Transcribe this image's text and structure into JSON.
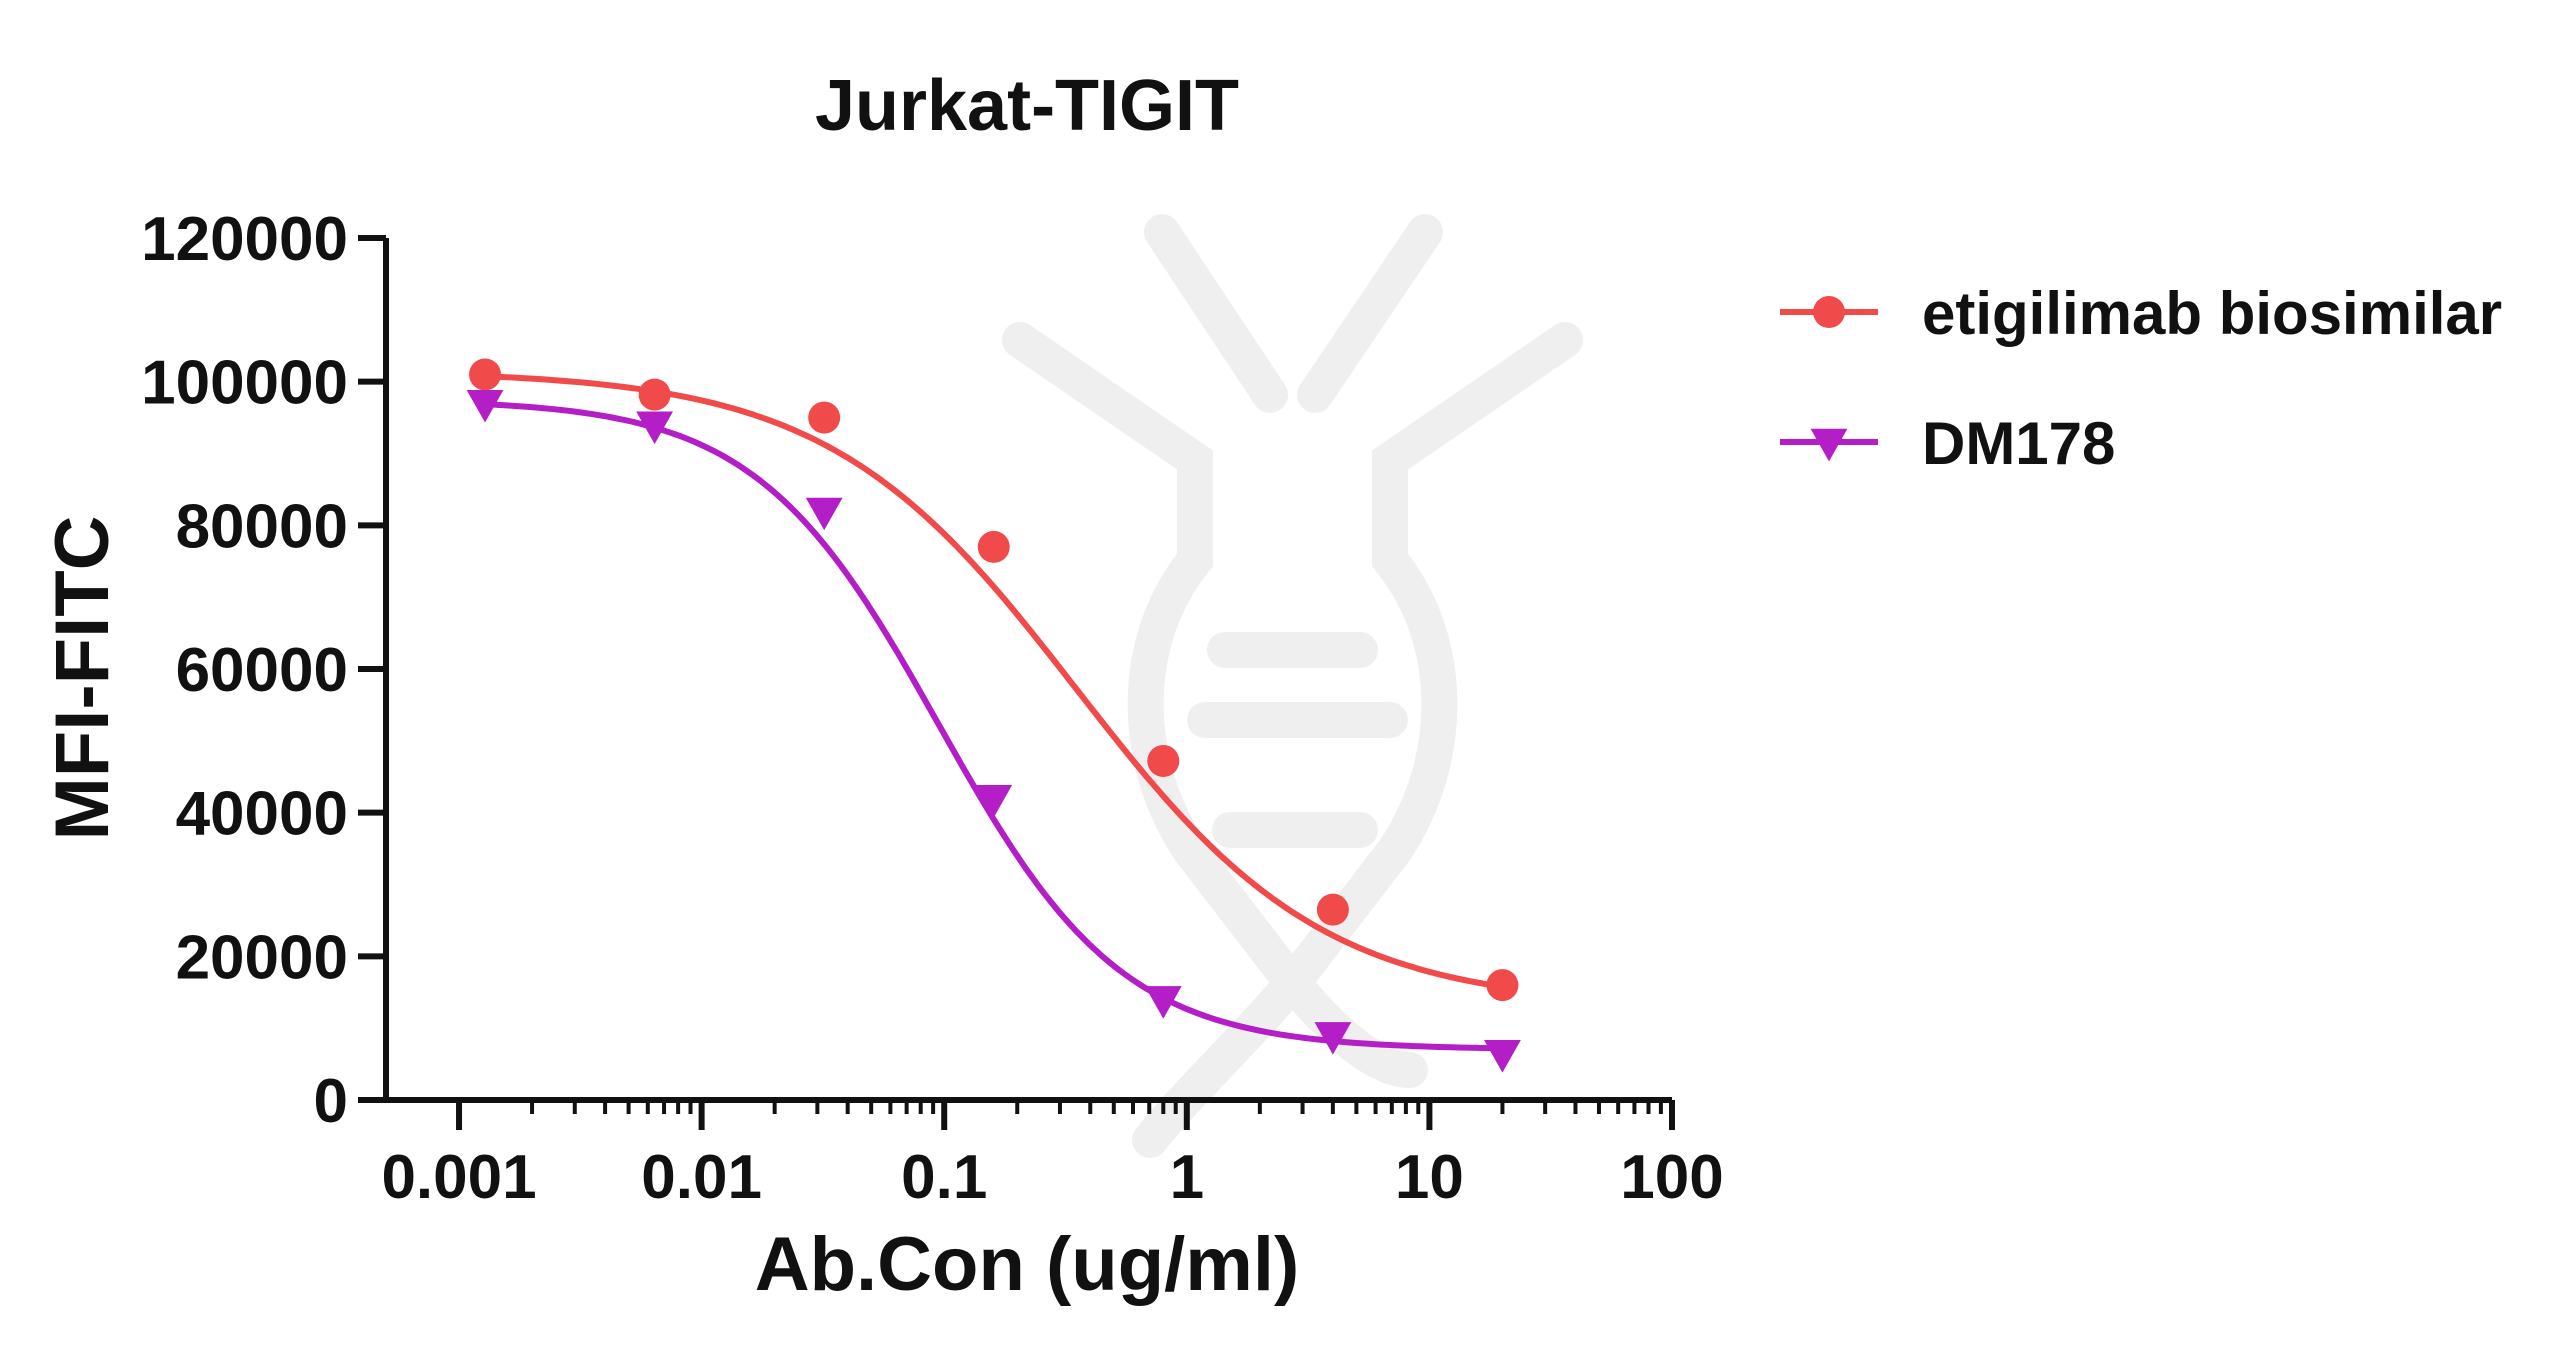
{
  "chart_data": {
    "type": "scatter",
    "title": "Jurkat-TIGIT",
    "xlabel": "Ab.Con (ug/ml)",
    "ylabel": "MFI-FITC",
    "x_scale": "log",
    "xlim": [
      0.0005,
      100
    ],
    "ylim": [
      0,
      120000
    ],
    "x_ticks": [
      0.001,
      0.01,
      0.1,
      1,
      10,
      100
    ],
    "x_tick_labels": [
      "0.001",
      "0.01",
      "0.1",
      "1",
      "10",
      "100"
    ],
    "y_ticks": [
      0,
      20000,
      40000,
      60000,
      80000,
      100000,
      120000
    ],
    "y_tick_labels": [
      "0",
      "20000",
      "40000",
      "60000",
      "80000",
      "100000",
      "120000"
    ],
    "grid": false,
    "legend_position": "right",
    "fit_line": "4-parameter logistic",
    "series": [
      {
        "name": "etigilimab biosimilar",
        "marker": "circle",
        "color": "#f04a4a",
        "x": [
          0.00128,
          0.0064,
          0.032,
          0.16,
          0.8,
          4,
          20
        ],
        "y": [
          101000,
          98200,
          95000,
          77000,
          47200,
          26500,
          16000
        ],
        "fit": {
          "bottom": 13000,
          "top": 101500,
          "ec50": 0.35,
          "hill": 0.85
        }
      },
      {
        "name": "DM178",
        "marker": "triangle-down",
        "color": "#b31ec6",
        "x": [
          0.00128,
          0.0064,
          0.032,
          0.16,
          0.8,
          4,
          20
        ],
        "y": [
          97000,
          94000,
          82000,
          42000,
          14000,
          9000,
          6500
        ],
        "fit": {
          "bottom": 7000,
          "top": 97500,
          "ec50": 0.095,
          "hill": 1.15
        }
      }
    ]
  }
}
